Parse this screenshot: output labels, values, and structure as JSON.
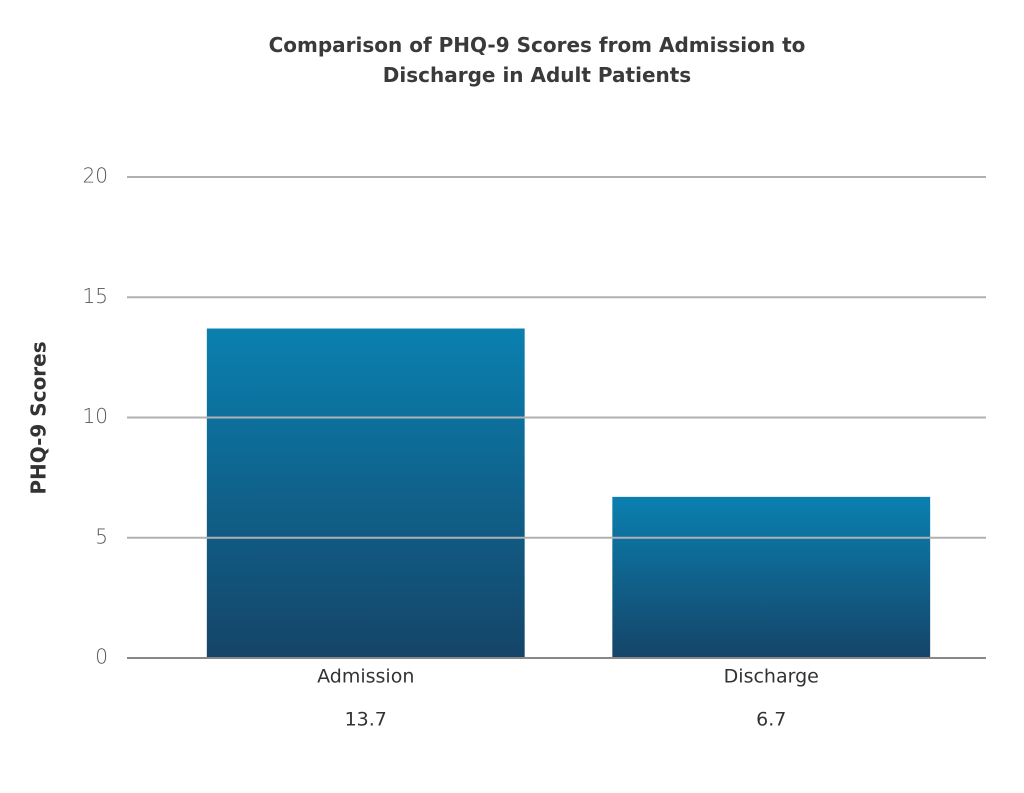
{
  "chart_data": {
    "type": "bar",
    "title": "Comparison of PHQ-9 Scores from Admission to Discharge in Adult Patients",
    "ylabel": "PHQ-9 Scores",
    "categories": [
      "Admission",
      "Discharge"
    ],
    "values": [
      13.7,
      6.7
    ],
    "color": "#0a80b0",
    "color_bottom": "#154468",
    "ylim": [
      0,
      20
    ],
    "yticks": [
      0,
      5,
      10,
      15,
      20
    ],
    "grid": true
  }
}
